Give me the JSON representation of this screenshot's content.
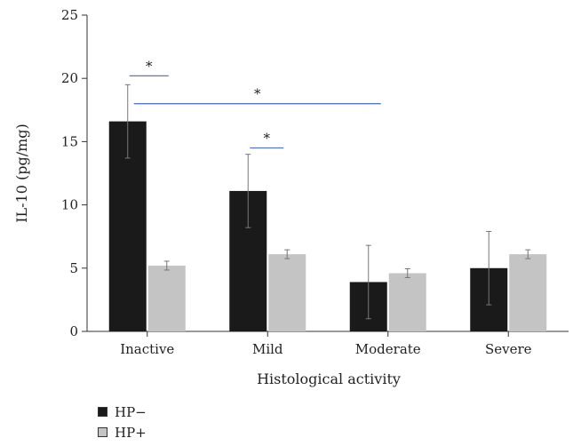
{
  "chart_data": {
    "type": "bar",
    "title": "",
    "xlabel": "Histological activity",
    "ylabel": "IL-10 (pg/mg)",
    "ylim": [
      0,
      25
    ],
    "yticks": [
      0,
      5,
      10,
      15,
      20,
      25
    ],
    "categories": [
      "Inactive",
      "Mild",
      "Moderate",
      "Severe"
    ],
    "series": [
      {
        "name": "HP−",
        "color": "#1a1a1a",
        "values": [
          16.6,
          11.1,
          3.9,
          5.0
        ],
        "errors": [
          2.9,
          2.9,
          2.9,
          2.9
        ]
      },
      {
        "name": "HP+",
        "color": "#c4c4c4",
        "values": [
          5.2,
          6.1,
          4.6,
          6.1
        ],
        "errors": [
          0.35,
          0.35,
          0.35,
          0.35
        ]
      }
    ],
    "significance": [
      {
        "label": "*",
        "from": "Inactive HP−",
        "to": "Inactive HP+",
        "y": 20.2
      },
      {
        "label": "*",
        "from": "Inactive HP−",
        "to": "Moderate HP−",
        "y": 18.0
      },
      {
        "label": "*",
        "from": "Mild HP−",
        "to": "Mild HP+",
        "y": 14.5
      }
    ],
    "significance_color": "#5577cc",
    "legend_position": "bottom-left",
    "grid": false
  }
}
